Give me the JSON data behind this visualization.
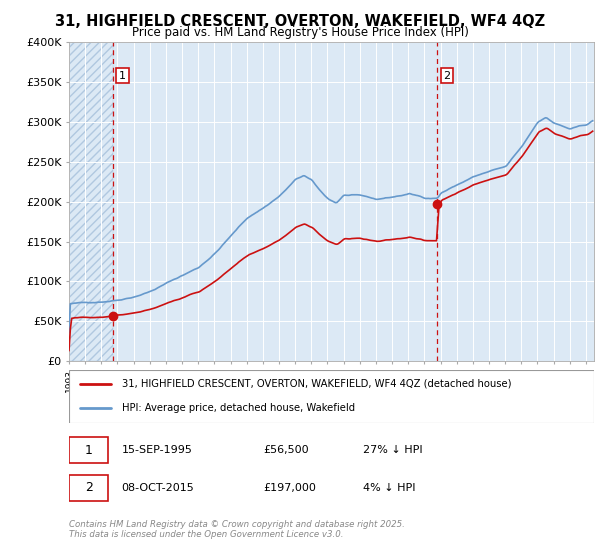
{
  "title": "31, HIGHFIELD CRESCENT, OVERTON, WAKEFIELD, WF4 4QZ",
  "subtitle": "Price paid vs. HM Land Registry's House Price Index (HPI)",
  "ylim": [
    0,
    400000
  ],
  "yticks": [
    0,
    50000,
    100000,
    150000,
    200000,
    250000,
    300000,
    350000,
    400000
  ],
  "background_color": "#ffffff",
  "plot_bg_color": "#dce9f5",
  "hatch_bg_color": "#dce9f5",
  "grid_color": "#ffffff",
  "line_color_hpi": "#6699cc",
  "line_color_price": "#cc1111",
  "sale1_price": 56500,
  "sale1_label": "1",
  "sale1_x": 1995.71,
  "sale2_price": 197000,
  "sale2_label": "2",
  "sale2_x": 2015.77,
  "vline_color": "#cc1111",
  "marker_color": "#cc1111",
  "legend_label_price": "31, HIGHFIELD CRESCENT, OVERTON, WAKEFIELD, WF4 4QZ (detached house)",
  "legend_label_hpi": "HPI: Average price, detached house, Wakefield",
  "copyright": "Contains HM Land Registry data © Crown copyright and database right 2025.\nThis data is licensed under the Open Government Licence v3.0.",
  "xmin": 1993,
  "xmax": 2025.5
}
